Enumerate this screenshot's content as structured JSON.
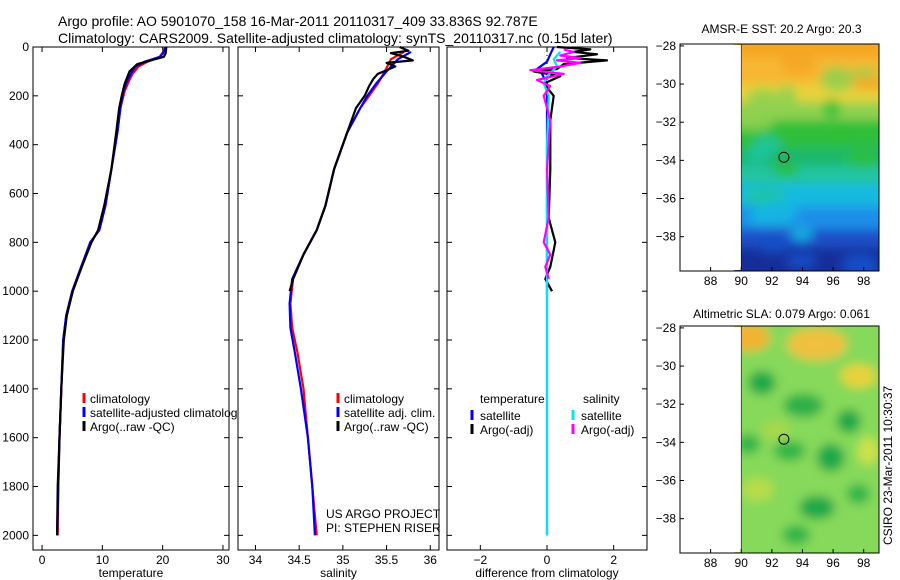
{
  "header": {
    "line1": "Argo profile: AO 5901070_158 16-Mar-2011 20110317_409 33.836S 92.787E",
    "line2": "Climatology: CARS2009. Satellite-adjusted climatology: synTS_20110317.nc (0.15d later)"
  },
  "side_label": "CSIRO 23-Mar-2011 10:30:37",
  "credit": {
    "line1": "US ARGO PROJECT",
    "line2": "PI: STEPHEN RISER"
  },
  "colors": {
    "climatology": "#ff0000",
    "satellite": "#0000ff",
    "argo": "#000000",
    "sal_satellite": "#00e5ff",
    "sal_argo": "#ff00ff"
  },
  "chart_data": [
    {
      "id": "temperature",
      "type": "line",
      "xlabel": "temperature",
      "xlim": [
        -1.5,
        31
      ],
      "xticks": [
        0,
        10,
        20,
        30
      ],
      "ylim": [
        0,
        2060
      ],
      "yticks": [
        0,
        200,
        400,
        600,
        800,
        1000,
        1200,
        1400,
        1600,
        1800,
        2000
      ],
      "y_reversed": true,
      "legend": {
        "position": "lower-right",
        "entries": [
          {
            "label": "climatology",
            "color": "#ff0000"
          },
          {
            "label": "satellite-adjusted climatology",
            "color": "#0000ff"
          },
          {
            "label": "Argo(..raw -QC)",
            "color": "#000000"
          }
        ]
      },
      "series": [
        {
          "name": "climatology",
          "color": "#ff0000",
          "points": [
            [
              20.3,
              0
            ],
            [
              20.1,
              20
            ],
            [
              19.5,
              40
            ],
            [
              17.5,
              60
            ],
            [
              16,
              80
            ],
            [
              15,
              110
            ],
            [
              14.4,
              140
            ],
            [
              13.7,
              180
            ],
            [
              13,
              250
            ],
            [
              12.5,
              350
            ],
            [
              11.5,
              500
            ],
            [
              10.5,
              650
            ],
            [
              9.5,
              750
            ],
            [
              8,
              800
            ],
            [
              6.5,
              900
            ],
            [
              5,
              1000
            ],
            [
              4,
              1100
            ],
            [
              3.5,
              1200
            ],
            [
              3.2,
              1400
            ],
            [
              2.9,
              1600
            ],
            [
              2.7,
              1800
            ],
            [
              2.6,
              2000
            ]
          ]
        },
        {
          "name": "satellite-adjusted climatology",
          "color": "#0000ff",
          "points": [
            [
              20.5,
              0
            ],
            [
              20.2,
              20
            ],
            [
              19.6,
              40
            ],
            [
              17,
              60
            ],
            [
              15.5,
              80
            ],
            [
              14.7,
              110
            ],
            [
              14.1,
              140
            ],
            [
              13.5,
              180
            ],
            [
              13,
              250
            ],
            [
              12.5,
              350
            ],
            [
              11.5,
              500
            ],
            [
              10.5,
              650
            ],
            [
              9.5,
              750
            ],
            [
              8,
              800
            ],
            [
              6.5,
              900
            ],
            [
              5,
              1000
            ],
            [
              4,
              1100
            ],
            [
              3.5,
              1200
            ],
            [
              3.2,
              1400
            ],
            [
              2.9,
              1600
            ],
            [
              2.7,
              1800
            ],
            [
              2.5,
              2000
            ]
          ]
        },
        {
          "name": "Argo(..raw -QC)",
          "color": "#000000",
          "points": [
            [
              20.6,
              0
            ],
            [
              20.5,
              25
            ],
            [
              20.2,
              40
            ],
            [
              18,
              55
            ],
            [
              15.8,
              70
            ],
            [
              14.5,
              100
            ],
            [
              13.7,
              150
            ],
            [
              13.2,
              200
            ],
            [
              12.8,
              250
            ],
            [
              12.3,
              350
            ],
            [
              11.5,
              500
            ],
            [
              10.3,
              650
            ],
            [
              9.3,
              750
            ],
            [
              8.2,
              800
            ],
            [
              6.6,
              900
            ],
            [
              5.1,
              1000
            ],
            [
              4.1,
              1100
            ],
            [
              3.6,
              1200
            ],
            [
              3.2,
              1400
            ],
            [
              2.9,
              1600
            ],
            [
              2.6,
              1800
            ],
            [
              2.5,
              2000
            ]
          ]
        }
      ]
    },
    {
      "id": "salinity",
      "type": "line",
      "xlabel": "salinity",
      "xlim": [
        33.8,
        36.1
      ],
      "xticks": [
        34,
        34.5,
        35,
        35.5,
        36
      ],
      "ylim": [
        0,
        2060
      ],
      "y_reversed": true,
      "legend": {
        "position": "lower-right",
        "entries": [
          {
            "label": "climatology",
            "color": "#ff0000"
          },
          {
            "label": "satellite adj. clim.",
            "color": "#0000ff"
          },
          {
            "label": "Argo(..raw -QC)",
            "color": "#000000"
          }
        ]
      },
      "series": [
        {
          "name": "climatology",
          "color": "#ff0000",
          "points": [
            [
              35.7,
              20
            ],
            [
              35.55,
              50
            ],
            [
              35.48,
              100
            ],
            [
              35.4,
              150
            ],
            [
              35.3,
              200
            ],
            [
              35.2,
              250
            ],
            [
              35.05,
              350
            ],
            [
              34.9,
              500
            ],
            [
              34.8,
              650
            ],
            [
              34.7,
              750
            ],
            [
              34.55,
              850
            ],
            [
              34.43,
              950
            ],
            [
              34.4,
              1050
            ],
            [
              34.42,
              1150
            ],
            [
              34.48,
              1250
            ],
            [
              34.55,
              1400
            ],
            [
              34.6,
              1600
            ],
            [
              34.65,
              1800
            ],
            [
              34.7,
              2000
            ]
          ]
        },
        {
          "name": "satellite adj. clim.",
          "color": "#0000ff",
          "points": [
            [
              35.78,
              20
            ],
            [
              35.63,
              50
            ],
            [
              35.5,
              100
            ],
            [
              35.38,
              150
            ],
            [
              35.28,
              200
            ],
            [
              35.2,
              250
            ],
            [
              35.05,
              350
            ],
            [
              34.9,
              500
            ],
            [
              34.8,
              650
            ],
            [
              34.7,
              750
            ],
            [
              34.55,
              850
            ],
            [
              34.42,
              950
            ],
            [
              34.39,
              1050
            ],
            [
              34.4,
              1150
            ],
            [
              34.45,
              1250
            ],
            [
              34.52,
              1400
            ],
            [
              34.6,
              1600
            ],
            [
              34.65,
              1800
            ],
            [
              34.68,
              2000
            ]
          ]
        },
        {
          "name": "Argo(..raw -QC)",
          "color": "#000000",
          "points": [
            [
              35.65,
              0
            ],
            [
              35.75,
              15
            ],
            [
              35.55,
              25
            ],
            [
              35.7,
              40
            ],
            [
              35.8,
              55
            ],
            [
              35.5,
              65
            ],
            [
              35.6,
              80
            ],
            [
              35.4,
              110
            ],
            [
              35.35,
              130
            ],
            [
              35.3,
              160
            ],
            [
              35.25,
              200
            ],
            [
              35.15,
              250
            ],
            [
              35.05,
              350
            ],
            [
              34.9,
              500
            ],
            [
              34.8,
              650
            ],
            [
              34.7,
              750
            ],
            [
              34.55,
              850
            ],
            [
              34.43,
              950
            ],
            [
              34.39,
              1000
            ]
          ]
        }
      ]
    },
    {
      "id": "difference",
      "type": "line",
      "xlabel": "difference from climatology",
      "xlim": [
        -3,
        3
      ],
      "xticks": [
        -2,
        0,
        2
      ],
      "ylim": [
        0,
        2060
      ],
      "y_reversed": true,
      "legend": {
        "position": "lower-center",
        "columns": [
          {
            "title": "temperature",
            "entries": [
              {
                "label": "satellite",
                "color": "#0000ff"
              },
              {
                "label": "Argo(-adj)",
                "color": "#000000"
              }
            ]
          },
          {
            "title": "salinity",
            "entries": [
              {
                "label": "satellite",
                "color": "#00e5ff"
              },
              {
                "label": "Argo(-adj)",
                "color": "#ff00ff"
              }
            ]
          }
        ]
      },
      "series": [
        {
          "name": "temperature satellite",
          "color": "#0000ff",
          "points": [
            [
              0.2,
              0
            ],
            [
              0.1,
              30
            ],
            [
              0,
              60
            ],
            [
              -0.3,
              90
            ],
            [
              -0.15,
              110
            ],
            [
              0,
              150
            ],
            [
              0,
              2000
            ]
          ]
        },
        {
          "name": "temperature Argo(-adj)",
          "color": "#000000",
          "points": [
            [
              0.3,
              0
            ],
            [
              1.3,
              10
            ],
            [
              0.8,
              20
            ],
            [
              1.5,
              30
            ],
            [
              0.6,
              45
            ],
            [
              1.8,
              55
            ],
            [
              0.5,
              70
            ],
            [
              0.3,
              90
            ],
            [
              -0.4,
              100
            ],
            [
              0.4,
              120
            ],
            [
              -0.1,
              150
            ],
            [
              0.2,
              200
            ],
            [
              0.1,
              300
            ],
            [
              0.1,
              500
            ],
            [
              0.05,
              700
            ],
            [
              0.25,
              800
            ],
            [
              0.1,
              900
            ],
            [
              -0.05,
              950
            ],
            [
              0.15,
              1000
            ]
          ]
        },
        {
          "name": "salinity satellite",
          "color": "#00e5ff",
          "points": [
            [
              0.4,
              20
            ],
            [
              0.2,
              50
            ],
            [
              0.3,
              80
            ],
            [
              0,
              120
            ],
            [
              -0.1,
              150
            ],
            [
              0.05,
              200
            ],
            [
              0,
              400
            ],
            [
              0,
              700
            ],
            [
              0,
              1000
            ],
            [
              0,
              2000
            ]
          ]
        },
        {
          "name": "salinity Argo(-adj)",
          "color": "#ff00ff",
          "points": [
            [
              0.5,
              10
            ],
            [
              0.8,
              20
            ],
            [
              0.4,
              35
            ],
            [
              1.0,
              45
            ],
            [
              0.3,
              55
            ],
            [
              1.0,
              65
            ],
            [
              0.4,
              80
            ],
            [
              -0.5,
              95
            ],
            [
              0.5,
              110
            ],
            [
              -0.3,
              135
            ],
            [
              0.1,
              160
            ],
            [
              -0.1,
              200
            ],
            [
              0.1,
              300
            ],
            [
              0,
              500
            ],
            [
              0.05,
              700
            ],
            [
              -0.1,
              800
            ],
            [
              0.1,
              850
            ],
            [
              -0.05,
              900
            ],
            [
              0.05,
              950
            ]
          ]
        }
      ]
    },
    {
      "id": "sst_map",
      "type": "heatmap",
      "title": "AMSR-E SST: 20.2 Argo: 20.3",
      "xlim": [
        86,
        99
      ],
      "xticks": [
        88,
        90,
        92,
        94,
        96,
        98
      ],
      "ylim": [
        -39.8,
        -27.9
      ],
      "yticks": [
        -28,
        -30,
        -32,
        -34,
        -36,
        -38
      ],
      "data_lon_range": [
        90,
        99
      ],
      "marker": {
        "lon": 92.787,
        "lat": -33.836
      }
    },
    {
      "id": "sla_map",
      "type": "heatmap",
      "title": "Altimetric SLA: 0.079 Argo: 0.061",
      "xlim": [
        86,
        99
      ],
      "xticks": [
        88,
        90,
        92,
        94,
        96,
        98
      ],
      "ylim": [
        -39.8,
        -27.9
      ],
      "yticks": [
        -28,
        -30,
        -32,
        -34,
        -36,
        -38
      ],
      "data_lon_range": [
        90,
        99
      ],
      "marker": {
        "lon": 92.787,
        "lat": -33.836
      }
    }
  ]
}
